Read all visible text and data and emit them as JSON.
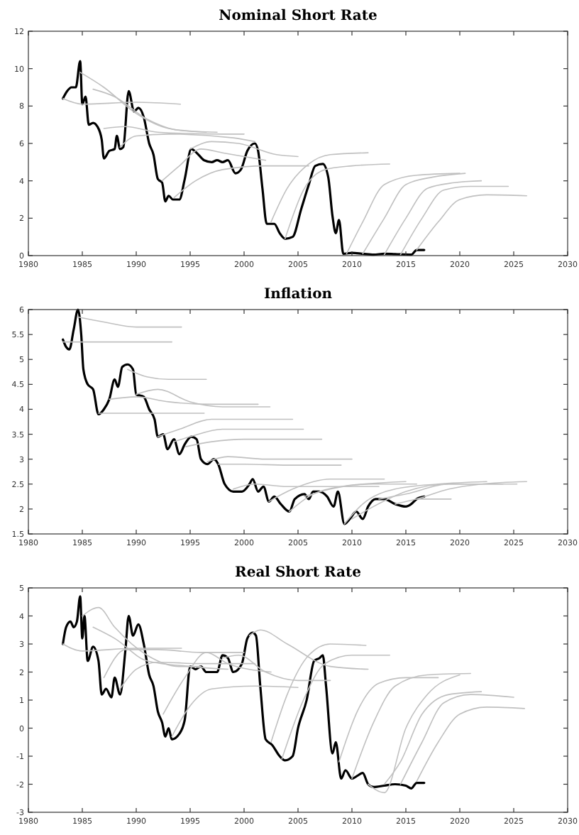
{
  "chart_data": [
    {
      "type": "line",
      "title": "Nominal Short Rate",
      "xlim": [
        1980,
        2030
      ],
      "xticks": [
        1980,
        1985,
        1990,
        1995,
        2000,
        2005,
        2010,
        2015,
        2020,
        2025,
        2030
      ],
      "ylim": [
        0,
        12
      ],
      "yticks": [
        0,
        2,
        4,
        6,
        8,
        10,
        12
      ],
      "line_style": "solid",
      "series": [
        {
          "color": "#000000",
          "x": [
            1983.2,
            1983.6,
            1984,
            1984.4,
            1984.8,
            1985,
            1985.3,
            1985.6,
            1986,
            1986.4,
            1986.8,
            1987,
            1987.5,
            1988,
            1988.2,
            1988.5,
            1988.8,
            1989.3,
            1989.8,
            1990.2,
            1990.7,
            1991.2,
            1991.6,
            1992,
            1992.4,
            1992.7,
            1993,
            1993.4,
            1994,
            1994.5,
            1995.1,
            1995.6,
            1996.3,
            1997,
            1997.5,
            1998,
            1998.5,
            1999.2,
            1999.7,
            2000.3,
            2001,
            2001.3,
            2001.7,
            2002.1,
            2002.8,
            2003.3,
            2003.8,
            2004.5,
            2005.3,
            2006,
            2006.6,
            2007.3,
            2007.8,
            2008.2,
            2008.5,
            2008.8,
            2009.2,
            2010,
            2011,
            2012,
            2013,
            2014,
            2015.5,
            2016,
            2016.7
          ],
          "values": [
            8.4,
            8.8,
            9.0,
            9.0,
            10.4,
            8.1,
            8.5,
            7.0,
            7.1,
            6.9,
            6.2,
            5.2,
            5.6,
            5.7,
            6.4,
            5.7,
            5.8,
            8.8,
            7.7,
            7.9,
            7.4,
            6.0,
            5.4,
            4.1,
            3.9,
            2.9,
            3.2,
            3.0,
            3.0,
            4.1,
            5.7,
            5.5,
            5.1,
            5.0,
            5.1,
            5.0,
            5.1,
            4.4,
            4.6,
            5.6,
            6.0,
            5.6,
            3.6,
            1.7,
            1.7,
            1.2,
            0.9,
            1.0,
            2.5,
            3.8,
            4.8,
            4.9,
            4.2,
            2.1,
            1.2,
            1.9,
            0.1,
            0.15,
            0.1,
            0.05,
            0.1,
            0.08,
            0.05,
            0.3,
            0.3
          ]
        },
        {
          "color": "#c0c0c0",
          "x": [
            1983.2,
            1985,
            1990,
            1994.1
          ],
          "values": [
            8.4,
            8.1,
            8.2,
            8.1
          ]
        },
        {
          "color": "#c0c0c0",
          "x": [
            1984.8,
            1987,
            1990,
            1993,
            1996.5
          ],
          "values": [
            9.8,
            9.0,
            7.6,
            6.8,
            6.6
          ]
        },
        {
          "color": "#c0c0c0",
          "x": [
            1986,
            1988,
            1991,
            1994,
            1997.5
          ],
          "values": [
            8.9,
            8.5,
            7.3,
            6.7,
            6.6
          ]
        },
        {
          "color": "#c0c0c0",
          "x": [
            1987,
            1989,
            1992,
            1998,
            2000
          ],
          "values": [
            6.8,
            6.9,
            6.6,
            6.5,
            6.5
          ]
        },
        {
          "color": "#c0c0c0",
          "x": [
            1988.5,
            1990,
            1993,
            1999,
            2001
          ],
          "values": [
            5.8,
            6.4,
            6.5,
            6.3,
            6.1
          ]
        },
        {
          "color": "#c0c0c0",
          "x": [
            1992.4,
            1994,
            1996,
            1998,
            2002
          ],
          "values": [
            4.0,
            4.8,
            5.7,
            5.5,
            5.1
          ]
        },
        {
          "color": "#c0c0c0",
          "x": [
            1993.5,
            1995.5,
            1998,
            2002,
            2006
          ],
          "values": [
            3.1,
            4.0,
            4.6,
            4.8,
            4.8
          ]
        },
        {
          "color": "#c0c0c0",
          "x": [
            1995,
            1997,
            1999.5,
            2003,
            2005
          ],
          "values": [
            5.7,
            6.1,
            6.0,
            5.4,
            5.3
          ]
        },
        {
          "color": "#c0c0c0",
          "x": [
            2002.5,
            2004,
            2006,
            2008,
            2011.5
          ],
          "values": [
            1.8,
            3.6,
            4.9,
            5.4,
            5.5
          ]
        },
        {
          "color": "#c0c0c0",
          "x": [
            2003.8,
            2005.5,
            2007.5,
            2010,
            2013.5
          ],
          "values": [
            0.9,
            3.5,
            4.6,
            4.8,
            4.9
          ]
        },
        {
          "color": "#c0c0c0",
          "x": [
            2009.5,
            2011,
            2013,
            2016,
            2020
          ],
          "values": [
            0.1,
            1.8,
            3.8,
            4.3,
            4.4
          ]
        },
        {
          "color": "#c0c0c0",
          "x": [
            2011,
            2013,
            2015,
            2017.5,
            2020.5
          ],
          "values": [
            0.1,
            2.0,
            3.8,
            4.2,
            4.4
          ]
        },
        {
          "color": "#c0c0c0",
          "x": [
            2013,
            2015,
            2017,
            2019.5,
            2022
          ],
          "values": [
            0.05,
            2.0,
            3.6,
            3.9,
            4.0
          ]
        },
        {
          "color": "#c0c0c0",
          "x": [
            2014.5,
            2016.5,
            2018.5,
            2021,
            2024.5
          ],
          "values": [
            0.05,
            2.0,
            3.5,
            3.7,
            3.7
          ]
        },
        {
          "color": "#c0c0c0",
          "x": [
            2016,
            2018,
            2020,
            2022.5,
            2026.2
          ],
          "values": [
            0.3,
            1.8,
            3.0,
            3.25,
            3.2
          ]
        }
      ]
    },
    {
      "type": "line",
      "title": "Inflation",
      "xlim": [
        1980,
        2030
      ],
      "xticks": [
        1980,
        1985,
        1990,
        1995,
        2000,
        2005,
        2010,
        2015,
        2020,
        2025,
        2030
      ],
      "ylim": [
        1.5,
        6
      ],
      "yticks": [
        1.5,
        2,
        2.5,
        3,
        3.5,
        4,
        4.5,
        5,
        5.5,
        6
      ],
      "line_style": "solid",
      "series": [
        {
          "color": "#000000",
          "x": [
            1983.2,
            1983.5,
            1983.8,
            1984.2,
            1984.6,
            1984.9,
            1985.1,
            1985.5,
            1986,
            1986.5,
            1987,
            1987.5,
            1988,
            1988.3,
            1988.7,
            1989.2,
            1989.7,
            1990,
            1990.7,
            1991.2,
            1991.7,
            1992,
            1992.5,
            1992.9,
            1993.5,
            1994,
            1994.5,
            1995.1,
            1995.6,
            1996,
            1996.6,
            1997.2,
            1997.6,
            1998.2,
            1999,
            1999.8,
            2000.5,
            2000.8,
            2001.3,
            2001.8,
            2002.3,
            2002.8,
            2003.4,
            2004.2,
            2004.7,
            2005.6,
            2006,
            2006.4,
            2007,
            2007.7,
            2008.3,
            2008.7,
            2009.3,
            2009.8,
            2010.4,
            2011,
            2011.5,
            2012.2,
            2013,
            2014,
            2015,
            2015.5,
            2016,
            2016.7
          ],
          "values": [
            5.4,
            5.25,
            5.2,
            5.6,
            6.0,
            5.5,
            4.8,
            4.5,
            4.4,
            3.9,
            4.0,
            4.2,
            4.6,
            4.45,
            4.85,
            4.9,
            4.8,
            4.3,
            4.25,
            4.0,
            3.8,
            3.45,
            3.5,
            3.2,
            3.4,
            3.1,
            3.3,
            3.45,
            3.4,
            3.0,
            2.9,
            3.0,
            2.9,
            2.5,
            2.35,
            2.35,
            2.5,
            2.6,
            2.35,
            2.45,
            2.15,
            2.25,
            2.1,
            1.95,
            2.2,
            2.3,
            2.2,
            2.35,
            2.35,
            2.25,
            2.05,
            2.35,
            1.7,
            1.8,
            1.95,
            1.8,
            2.05,
            2.2,
            2.2,
            2.1,
            2.05,
            2.1,
            2.2,
            2.25
          ]
        },
        {
          "color": "#c0c0c0",
          "x": [
            1983.2,
            1990,
            1993.3
          ],
          "values": [
            5.35,
            5.35,
            5.35
          ]
        },
        {
          "color": "#c0c0c0",
          "x": [
            1984.6,
            1987,
            1990,
            1994.2
          ],
          "values": [
            5.85,
            5.75,
            5.65,
            5.65
          ]
        },
        {
          "color": "#c0c0c0",
          "x": [
            1989.2,
            1991,
            1993,
            1996.5
          ],
          "values": [
            4.8,
            4.65,
            4.6,
            4.6
          ]
        },
        {
          "color": "#c0c0c0",
          "x": [
            1986.5,
            1996.3
          ],
          "values": [
            3.92,
            3.92
          ]
        },
        {
          "color": "#c0c0c0",
          "x": [
            1987.5,
            1990,
            1993,
            1997,
            2001.3
          ],
          "values": [
            4.2,
            4.25,
            4.15,
            4.1,
            4.1
          ]
        },
        {
          "color": "#c0c0c0",
          "x": [
            1990,
            1992,
            1995,
            1998,
            2002.4
          ],
          "values": [
            4.3,
            4.4,
            4.15,
            4.05,
            4.05
          ]
        },
        {
          "color": "#c0c0c0",
          "x": [
            1992,
            1994,
            1997,
            2000,
            2004.5
          ],
          "values": [
            3.45,
            3.6,
            3.8,
            3.8,
            3.8
          ]
        },
        {
          "color": "#c0c0c0",
          "x": [
            1993.5,
            1995,
            1998,
            2001,
            2005.5
          ],
          "values": [
            3.35,
            3.45,
            3.6,
            3.6,
            3.6
          ]
        },
        {
          "color": "#c0c0c0",
          "x": [
            1994.6,
            1997,
            2000,
            2003,
            2007.2
          ],
          "values": [
            3.25,
            3.35,
            3.4,
            3.4,
            3.4
          ]
        },
        {
          "color": "#c0c0c0",
          "x": [
            1996.6,
            1998.5,
            2002,
            2010
          ],
          "values": [
            2.95,
            3.05,
            3.0,
            3.0
          ]
        },
        {
          "color": "#c0c0c0",
          "x": [
            1997.6,
            2000,
            2004,
            2009
          ],
          "values": [
            2.9,
            2.9,
            2.88,
            2.88
          ]
        },
        {
          "color": "#c0c0c0",
          "x": [
            1999,
            2001,
            2004,
            2009,
            2012.5
          ],
          "values": [
            2.4,
            2.5,
            2.45,
            2.45,
            2.45
          ]
        },
        {
          "color": "#c0c0c0",
          "x": [
            2002.3,
            2004.5,
            2008,
            2013
          ],
          "values": [
            2.15,
            2.4,
            2.6,
            2.6
          ]
        },
        {
          "color": "#c0c0c0",
          "x": [
            2004.2,
            2006,
            2009,
            2015
          ],
          "values": [
            1.95,
            2.25,
            2.45,
            2.55
          ]
        },
        {
          "color": "#c0c0c0",
          "x": [
            2005.6,
            2008,
            2012,
            2016
          ],
          "values": [
            2.25,
            2.4,
            2.5,
            2.5
          ]
        },
        {
          "color": "#c0c0c0",
          "x": [
            2009.3,
            2011,
            2014,
            2018,
            2022.5
          ],
          "values": [
            1.7,
            2.1,
            2.4,
            2.5,
            2.55
          ]
        },
        {
          "color": "#c0c0c0",
          "x": [
            2010,
            2012,
            2015,
            2019,
            2024
          ],
          "values": [
            1.8,
            2.05,
            2.35,
            2.5,
            2.5
          ]
        },
        {
          "color": "#c0c0c0",
          "x": [
            2012.5,
            2015,
            2019,
            2025.3
          ],
          "values": [
            2.2,
            2.3,
            2.5,
            2.5
          ]
        },
        {
          "color": "#c0c0c0",
          "x": [
            2014,
            2016,
            2019,
            2022,
            2026.2
          ],
          "values": [
            2.1,
            2.2,
            2.4,
            2.5,
            2.55
          ]
        },
        {
          "color": "#c0c0c0",
          "x": [
            2016,
            2017.5,
            2019.2
          ],
          "values": [
            2.2,
            2.2,
            2.2
          ]
        }
      ]
    },
    {
      "type": "line",
      "title": "Real Short Rate",
      "xlim": [
        1980,
        2030
      ],
      "xticks": [
        1980,
        1985,
        1990,
        1995,
        2000,
        2005,
        2010,
        2015,
        2020,
        2025,
        2030
      ],
      "ylim": [
        -3,
        5
      ],
      "yticks": [
        -3,
        -2,
        -1,
        0,
        1,
        2,
        3,
        4,
        5
      ],
      "line_style": "solid",
      "series": [
        {
          "color": "#000000",
          "x": [
            1983.2,
            1983.5,
            1983.9,
            1984.2,
            1984.5,
            1984.8,
            1985,
            1985.2,
            1985.5,
            1986,
            1986.5,
            1986.8,
            1987.2,
            1987.7,
            1988,
            1988.5,
            1989,
            1989.3,
            1989.7,
            1990.2,
            1990.7,
            1991.2,
            1991.6,
            1992,
            1992.4,
            1992.7,
            1993,
            1993.3,
            1994,
            1994.5,
            1995,
            1995.5,
            1996,
            1996.5,
            1997.5,
            1998,
            1998.5,
            1999,
            1999.8,
            2000.3,
            2000.8,
            2001.1,
            2001.5,
            2002,
            2002.6,
            2003.3,
            2003.8,
            2004.5,
            2005,
            2005.8,
            2006.5,
            2007,
            2007.3,
            2007.6,
            2008.2,
            2008.5,
            2009,
            2009.4,
            2010,
            2010.5,
            2011,
            2011.5,
            2012,
            2013,
            2014,
            2015,
            2015.5,
            2016,
            2016.7
          ],
          "values": [
            3.0,
            3.6,
            3.8,
            3.6,
            3.8,
            4.7,
            3.2,
            4.0,
            2.4,
            2.9,
            2.4,
            1.2,
            1.4,
            1.1,
            1.8,
            1.2,
            2.8,
            4.0,
            3.3,
            3.7,
            3.0,
            1.9,
            1.5,
            0.6,
            0.2,
            -0.3,
            0.0,
            -0.4,
            -0.2,
            0.3,
            2.2,
            2.1,
            2.2,
            2.0,
            2.0,
            2.6,
            2.5,
            2.0,
            2.3,
            3.2,
            3.4,
            3.3,
            1.5,
            -0.4,
            -0.6,
            -1.0,
            -1.15,
            -1.0,
            0.0,
            1.0,
            2.4,
            2.5,
            2.6,
            1.5,
            -0.9,
            -0.5,
            -1.8,
            -1.5,
            -1.8,
            -1.7,
            -1.6,
            -2.0,
            -2.1,
            -2.05,
            -2.0,
            -2.05,
            -2.15,
            -1.95,
            -1.95
          ]
        },
        {
          "color": "#c0c0c0",
          "x": [
            1983.2,
            1985,
            1990,
            1994.2
          ],
          "values": [
            3.0,
            2.75,
            2.85,
            2.85
          ]
        },
        {
          "color": "#c0c0c0",
          "x": [
            1985,
            1986.5,
            1988,
            1991,
            1994,
            1996
          ],
          "values": [
            4.0,
            4.3,
            3.6,
            2.6,
            2.2,
            2.2
          ]
        },
        {
          "color": "#c0c0c0",
          "x": [
            1986,
            1988,
            1991,
            1995,
            1998.5
          ],
          "values": [
            3.6,
            3.2,
            2.4,
            2.2,
            2.1
          ]
        },
        {
          "color": "#c0c0c0",
          "x": [
            1987,
            1989,
            1992,
            1996,
            2000
          ],
          "values": [
            1.8,
            2.8,
            2.8,
            2.7,
            2.7
          ]
        },
        {
          "color": "#c0c0c0",
          "x": [
            1988.5,
            1990,
            1992,
            1996,
            2001
          ],
          "values": [
            1.4,
            2.1,
            2.35,
            2.3,
            2.3
          ]
        },
        {
          "color": "#c0c0c0",
          "x": [
            1992.5,
            1994.5,
            1996.5,
            1998.5,
            2002.5
          ],
          "values": [
            0.5,
            1.8,
            2.7,
            2.3,
            2.0
          ]
        },
        {
          "color": "#c0c0c0",
          "x": [
            1993.3,
            1995,
            1997,
            2001,
            2005
          ],
          "values": [
            -0.3,
            0.8,
            1.4,
            1.5,
            1.45
          ]
        },
        {
          "color": "#c0c0c0",
          "x": [
            1998,
            1999.5,
            2002,
            2005,
            2008
          ],
          "values": [
            2.5,
            2.6,
            2.0,
            1.7,
            1.7
          ]
        },
        {
          "color": "#c0c0c0",
          "x": [
            2000.5,
            2001.5,
            2004,
            2008,
            2011.5
          ],
          "values": [
            3.3,
            3.5,
            3.0,
            2.2,
            2.1
          ]
        },
        {
          "color": "#c0c0c0",
          "x": [
            2002.5,
            2004,
            2006,
            2008,
            2011.3
          ],
          "values": [
            -0.5,
            1.2,
            2.6,
            3.0,
            2.95
          ]
        },
        {
          "color": "#c0c0c0",
          "x": [
            2003.5,
            2005.5,
            2007.5,
            2010,
            2013.5
          ],
          "values": [
            -1.1,
            1.0,
            2.3,
            2.6,
            2.6
          ]
        },
        {
          "color": "#c0c0c0",
          "x": [
            2008.8,
            2010.5,
            2012.5,
            2015,
            2018
          ],
          "values": [
            -1.2,
            0.6,
            1.6,
            1.8,
            1.8
          ]
        },
        {
          "color": "#c0c0c0",
          "x": [
            2010,
            2012,
            2014,
            2017,
            2021
          ],
          "values": [
            -1.8,
            0.2,
            1.5,
            1.9,
            1.95
          ]
        },
        {
          "color": "#c0c0c0",
          "x": [
            2011.5,
            2013,
            2015,
            2017,
            2020
          ],
          "values": [
            -2.0,
            -2.3,
            0.0,
            1.2,
            1.9
          ]
        },
        {
          "color": "#c0c0c0",
          "x": [
            2013,
            2014.5,
            2016.5,
            2019,
            2022
          ],
          "values": [
            -2.0,
            -1.2,
            0.5,
            1.2,
            1.3
          ]
        },
        {
          "color": "#c0c0c0",
          "x": [
            2014.5,
            2016.5,
            2018.5,
            2021,
            2025
          ],
          "values": [
            -2.0,
            -0.5,
            0.9,
            1.2,
            1.1
          ]
        },
        {
          "color": "#c0c0c0",
          "x": [
            2016,
            2018,
            2020,
            2022.5,
            2026
          ],
          "values": [
            -1.9,
            -0.5,
            0.5,
            0.75,
            0.7
          ]
        }
      ]
    }
  ]
}
